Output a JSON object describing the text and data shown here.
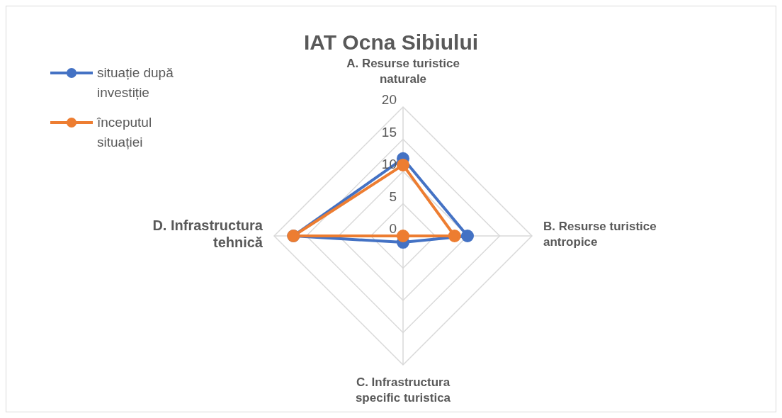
{
  "chart_data": {
    "type": "radar",
    "title": "IAT Ocna Sibiului",
    "categories": [
      "A. Resurse turistice naturale",
      "B. Resurse turistice antropice",
      "C. Infrastructura specific turistica",
      "D. Infrastructura tehnică"
    ],
    "series": [
      {
        "name": "situație după investiție",
        "color": "#4472c4",
        "values": [
          12,
          10,
          1,
          17
        ]
      },
      {
        "name": "începutul situației",
        "color": "#ed7d31",
        "values": [
          11,
          8,
          0,
          17
        ]
      }
    ],
    "ylim": [
      0,
      20
    ],
    "yticks": [
      0,
      5,
      10,
      15,
      20
    ],
    "grid": true,
    "legend": "top left",
    "marker": "circle"
  }
}
